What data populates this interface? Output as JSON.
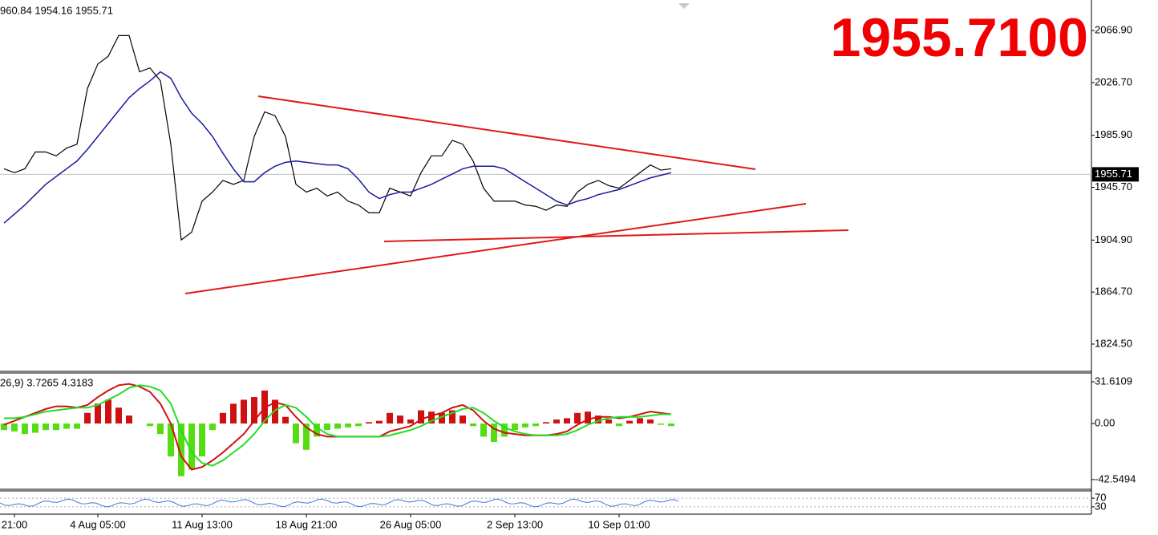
{
  "header": "960.84 1954.16 1955.71",
  "big_price": "1955.7100",
  "current_price": 1955.71,
  "chart_data": [
    {
      "type": "line",
      "categories": [
        null,
        "21:00",
        null,
        null,
        null,
        null,
        null,
        null,
        null,
        "4 Aug 05:00",
        null,
        null,
        null,
        null,
        null,
        null,
        null,
        null,
        null,
        "11 Aug 13:00",
        null,
        null,
        null,
        null,
        null,
        null,
        null,
        null,
        null,
        "18 Aug 21:00",
        null,
        null,
        null,
        null,
        null,
        null,
        null,
        null,
        null,
        "26 Aug 05:00",
        null,
        null,
        null,
        null,
        null,
        null,
        null,
        null,
        null,
        "2 Sep 13:00",
        null,
        null,
        null,
        null,
        null,
        null,
        null,
        null,
        null,
        "10 Sep 01:00",
        null,
        null,
        null,
        null,
        null
      ],
      "series": [
        {
          "color": "#000000",
          "values": [
            1960,
            1957,
            1960,
            1973,
            1973,
            1970,
            1976,
            1979,
            2022,
            2041,
            2047,
            2063,
            2063,
            2035,
            2038,
            2028,
            1979,
            1905,
            1911,
            1935,
            1942,
            1951,
            1948,
            1951,
            1985,
            2004,
            2001,
            1985,
            1948,
            1942,
            1945,
            1939,
            1942,
            1935,
            1932,
            1926,
            1926,
            1945,
            1942,
            1939,
            1957,
            1970,
            1970,
            1982,
            1979,
            1966,
            1945,
            1935,
            1935,
            1935,
            1932,
            1931,
            1928,
            1932,
            1931,
            1942,
            1948,
            1951,
            1947,
            1945,
            1951,
            1957,
            1963,
            1959,
            1960
          ]
        },
        {
          "color": "#1a1aa0",
          "values": [
            1918,
            1925,
            1932,
            1940,
            1948,
            1954,
            1960,
            1966,
            1975,
            1985,
            1995,
            2005,
            2015,
            2022,
            2028,
            2035,
            2030,
            2015,
            2003,
            1995,
            1985,
            1972,
            1960,
            1950,
            1950,
            1957,
            1962,
            1965,
            1966,
            1965,
            1964,
            1963,
            1963,
            1960,
            1952,
            1942,
            1937,
            1940,
            1942,
            1942,
            1945,
            1948,
            1952,
            1956,
            1960,
            1962,
            1962,
            1962,
            1960,
            1955,
            1950,
            1945,
            1940,
            1935,
            1932,
            1935,
            1937,
            1940,
            1942,
            1944,
            1947,
            1950,
            1953,
            1955,
            1957
          ]
        }
      ],
      "ylim": [
        1803.4,
        2090.5
      ],
      "yticks": [
        {
          "value": 2066.9,
          "label": "2066.90"
        },
        {
          "value": 2026.7,
          "label": "2026.70"
        },
        {
          "value": 1985.9,
          "label": "1985.90"
        },
        {
          "value": 1945.7,
          "label": "1945.70"
        },
        {
          "value": 1904.9,
          "label": "1904.90"
        },
        {
          "value": 1864.7,
          "label": "1864.70"
        },
        {
          "value": 1824.5,
          "label": "1824.50"
        }
      ]
    },
    {
      "type": "macd",
      "title": "26,9) 3.7265 4.3183",
      "values": [
        -5,
        -6,
        -8,
        -7,
        -5,
        -5,
        -4,
        -4,
        8,
        15,
        18,
        12,
        6,
        0,
        -2,
        -8,
        -25,
        -40,
        -35,
        -25,
        -5,
        8,
        15,
        18,
        20,
        25,
        18,
        5,
        -15,
        -20,
        -10,
        -5,
        -4,
        -3,
        -2,
        1,
        2,
        8,
        6,
        3,
        10,
        9,
        8,
        10,
        6,
        -2,
        -10,
        -14,
        -10,
        -5,
        -3,
        -2,
        1,
        3,
        4,
        8,
        9,
        6,
        3,
        -2,
        2,
        4,
        3,
        -1,
        -2
      ],
      "colors": {
        "positive": "#d01010",
        "negative": "#55dd11"
      },
      "series": [
        {
          "color": "#d01010",
          "values": [
            -1,
            2,
            5,
            8,
            11,
            13,
            13,
            12,
            14,
            20,
            25,
            29,
            30,
            28,
            24,
            15,
            0,
            -25,
            -35,
            -33,
            -28,
            -22,
            -15,
            -8,
            2,
            12,
            16,
            14,
            5,
            -3,
            -8,
            -10,
            -10,
            -10,
            -10,
            -10,
            -10,
            -6,
            -4,
            -2,
            3,
            6,
            8,
            12,
            14,
            10,
            2,
            -4,
            -7,
            -8,
            -9,
            -9,
            -9,
            -8,
            -6,
            -1,
            3,
            5,
            5,
            4,
            5,
            7,
            9,
            8,
            7
          ]
        },
        {
          "color": "#22dd22",
          "values": [
            4,
            4,
            5,
            7,
            9,
            10,
            11,
            12,
            12,
            14,
            18,
            22,
            27,
            29,
            28,
            25,
            15,
            -5,
            -22,
            -30,
            -32,
            -28,
            -22,
            -16,
            -8,
            2,
            10,
            14,
            12,
            5,
            -3,
            -8,
            -10,
            -10,
            -10,
            -10,
            -10,
            -9,
            -7,
            -5,
            -2,
            2,
            5,
            8,
            11,
            12,
            8,
            2,
            -3,
            -6,
            -8,
            -9,
            -9,
            -9,
            -8,
            -5,
            -1,
            2,
            4,
            5,
            5,
            5,
            6,
            7,
            7
          ]
        }
      ],
      "ylim": [
        -49.9,
        38.3
      ],
      "yticks": [
        31.6109,
        {
          "value": 0,
          "label": "0.00"
        },
        -42.5494
      ]
    },
    {
      "type": "oscillator",
      "ylim": [
        0,
        100
      ],
      "yticks": [
        70,
        30
      ]
    }
  ]
}
